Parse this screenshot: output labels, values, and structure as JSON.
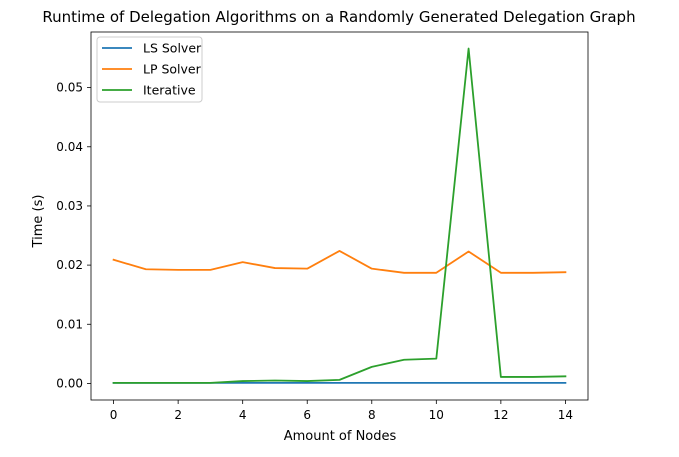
{
  "chart_data": {
    "type": "line",
    "title": "Runtime of Delegation Algorithms on a Randomly Generated Delegation Graph",
    "xlabel": "Amount of Nodes",
    "ylabel": "Time (s)",
    "xlim": [
      -0.7,
      14.7
    ],
    "ylim": [
      -0.0028,
      0.0594
    ],
    "x_ticks": [
      0,
      2,
      4,
      6,
      8,
      10,
      12,
      14
    ],
    "x_tick_labels": [
      "0",
      "2",
      "4",
      "6",
      "8",
      "10",
      "12",
      "14"
    ],
    "y_ticks": [
      0.0,
      0.01,
      0.02,
      0.03,
      0.04,
      0.05
    ],
    "y_tick_labels": [
      "0.00",
      "0.01",
      "0.02",
      "0.03",
      "0.04",
      "0.05"
    ],
    "grid": false,
    "legend_position": "top-left",
    "x": [
      0,
      1,
      2,
      3,
      4,
      5,
      6,
      7,
      8,
      9,
      10,
      11,
      12,
      13,
      14
    ],
    "series": [
      {
        "name": "LS Solver",
        "color": "#1f77b4",
        "values": [
          0.0001,
          0.0001,
          0.0001,
          0.0001,
          0.0001,
          0.0001,
          0.0001,
          0.0001,
          0.0001,
          0.0001,
          0.0001,
          0.0001,
          0.0001,
          0.0001,
          0.0001
        ]
      },
      {
        "name": "LP Solver",
        "color": "#ff7f0e",
        "values": [
          0.0209,
          0.0193,
          0.0192,
          0.0192,
          0.0205,
          0.0195,
          0.0194,
          0.0224,
          0.0194,
          0.0187,
          0.0187,
          0.0223,
          0.0187,
          0.0187,
          0.0188
        ]
      },
      {
        "name": "Iterative",
        "color": "#2ca02c",
        "values": [
          0.0001,
          0.0001,
          0.0001,
          0.0001,
          0.0004,
          0.0005,
          0.0004,
          0.0006,
          0.0028,
          0.004,
          0.0042,
          0.0566,
          0.0011,
          0.0011,
          0.0012
        ]
      }
    ]
  }
}
